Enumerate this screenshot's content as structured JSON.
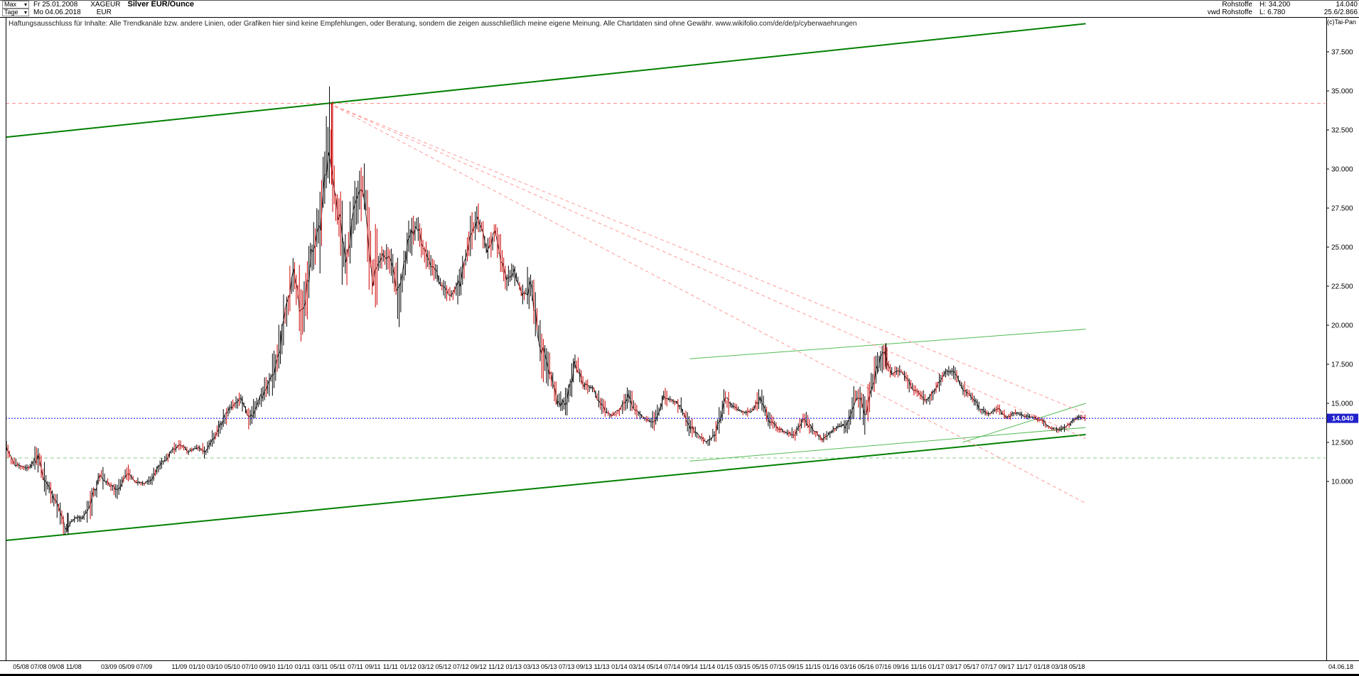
{
  "header": {
    "range_selector": "Max",
    "range_start": "Fr 25.01.2008",
    "symbol": "XAGEUR",
    "title": "Silver EUR/Ounce",
    "period_selector": "Tage",
    "last_session": "Mo 04.06.2018",
    "currency": "EUR",
    "feed_line1": "Rohstoffe",
    "feed_line2": "vwd Rohstoffe",
    "high": "H: 34.200",
    "low": "L: 6.780",
    "last_value": "14.040",
    "extra_value": "25.6/2.866",
    "copyright": "(c)Tai-Pan"
  },
  "disclaimer": "Haftungsausschluss für Inhalte: Alle Trendkanäle bzw. andere Linien, oder Grafiken hier sind keine Empfehlungen, oder Beratung, sondern die zeigen ausschließlich meine eigene Meinung. Alle Chartdaten sind ohne Gewähr.  www.wikifolio.com/de/de/p/cyberwaehrungen",
  "axis": {
    "last_price": "14.040",
    "last_date": "04.06.18"
  },
  "chart_data": {
    "type": "line",
    "title": "Silver EUR/Ounce",
    "unit": "EUR",
    "start_month": "2008-01",
    "end_date": "2018-06-04",
    "ylim": [
      -1.45,
      39.7
    ],
    "y_tick_values": [
      37.5,
      35.0,
      32.5,
      30.0,
      27.5,
      25.0,
      22.5,
      20.0,
      17.5,
      15.0,
      12.5,
      10.0
    ],
    "y_tick_labels": [
      "37.500",
      "35.000",
      "32.500",
      "30.000",
      "27.500",
      "25.000",
      "22.500",
      "20.000",
      "17.500",
      "15.000",
      "12.500",
      "10.000"
    ],
    "x_tick_labels": [
      "05/08",
      "07/08",
      "09/08",
      "11/08",
      "03/09",
      "05/09",
      "07/09",
      "11/09",
      "01/10",
      "03/10",
      "05/10",
      "07/10",
      "09/10",
      "11/10",
      "01/11",
      "03/11",
      "05/11",
      "07/11",
      "09/11",
      "11/11",
      "01/12",
      "03/12",
      "05/12",
      "07/12",
      "09/12",
      "11/12",
      "01/13",
      "03/13",
      "05/13",
      "07/13",
      "09/13",
      "11/13",
      "01/14",
      "03/14",
      "05/14",
      "07/14",
      "09/14",
      "11/14",
      "01/15",
      "03/15",
      "05/15",
      "07/15",
      "09/15",
      "11/15",
      "01/16",
      "03/16",
      "05/16",
      "07/16",
      "09/16",
      "11/16",
      "01/17",
      "03/17",
      "05/17",
      "07/17",
      "09/17",
      "11/17",
      "01/18",
      "03/18",
      "05/18"
    ],
    "monthly_close": [
      11.2,
      12.2,
      12.6,
      11.3,
      10.9,
      10.9,
      11.6,
      9.6,
      8.7,
      7.0,
      7.6,
      7.7,
      8.7,
      10.4,
      9.8,
      9.4,
      10.6,
      10.0,
      9.8,
      10.3,
      11.2,
      11.8,
      12.4,
      11.9,
      12.2,
      11.9,
      12.9,
      13.9,
      14.9,
      15.2,
      14.0,
      15.1,
      16.1,
      17.4,
      20.5,
      23.1,
      20.6,
      24.4,
      26.6,
      32.3,
      27.0,
      24.0,
      27.8,
      28.9,
      22.6,
      24.5,
      24.2,
      21.6,
      25.5,
      26.5,
      24.4,
      23.6,
      22.3,
      21.9,
      22.9,
      25.3,
      26.9,
      24.9,
      26.0,
      22.9,
      23.5,
      21.9,
      22.4,
      18.6,
      17.3,
      15.0,
      15.1,
      17.7,
      16.1,
      16.0,
      14.8,
      14.2,
      14.5,
      15.5,
      14.4,
      14.0,
      13.8,
      15.4,
      15.2,
      14.8,
      13.5,
      12.9,
      12.5,
      13.1,
      15.2,
      14.8,
      14.4,
      14.5,
      15.3,
      14.0,
      13.4,
      13.1,
      13.0,
      14.1,
      13.3,
      12.7,
      13.1,
      13.6,
      13.6,
      15.7,
      14.4,
      16.8,
      18.2,
      16.9,
      17.1,
      16.2,
      15.6,
      15.1,
      16.0,
      17.0,
      17.1,
      15.9,
      15.5,
      14.6,
      14.3,
      14.7,
      14.1,
      14.4,
      14.2,
      14.1,
      13.9,
      13.4,
      13.3,
      13.6,
      14.1,
      14.04
    ],
    "high": {
      "month": "2011-04",
      "value": 34.2
    },
    "low": {
      "month": "2008-10",
      "value": 6.78
    },
    "last": 14.04,
    "trend_lines": [
      {
        "name": "channel-upper",
        "from": [
          "2008-01",
          31.9
        ],
        "to": [
          "2018-06",
          39.3
        ],
        "color": "#007f00",
        "width": 2,
        "style": "solid"
      },
      {
        "name": "channel-lower",
        "from": [
          "2008-01",
          6.1
        ],
        "to": [
          "2018-06",
          13.0
        ],
        "color": "#007f00",
        "width": 2,
        "style": "solid"
      },
      {
        "name": "support-mid",
        "from": [
          "2014-09",
          17.85
        ],
        "to": [
          "2018-06",
          19.75
        ],
        "color": "#55bb55",
        "width": 1,
        "style": "solid"
      },
      {
        "name": "support-low-a",
        "from": [
          "2014-09",
          11.3
        ],
        "to": [
          "2018-06",
          13.45
        ],
        "color": "#55bb55",
        "width": 1,
        "style": "solid"
      },
      {
        "name": "support-low-b",
        "from": [
          "2017-04",
          12.5
        ],
        "to": [
          "2018-06",
          15.0
        ],
        "color": "#55bb55",
        "width": 1,
        "style": "solid"
      },
      {
        "name": "fan-1",
        "from": [
          "2011-04",
          34.2
        ],
        "to": [
          "2018-06",
          14.35
        ],
        "color": "#ff9999",
        "width": 1,
        "style": "dashed"
      },
      {
        "name": "fan-2",
        "from": [
          "2011-04",
          34.2
        ],
        "to": [
          "2018-06",
          12.75
        ],
        "color": "#ff9999",
        "width": 1,
        "style": "dashed"
      },
      {
        "name": "fan-3",
        "from": [
          "2011-04",
          34.2
        ],
        "to": [
          "2018-06",
          8.6
        ],
        "color": "#ff9999",
        "width": 1,
        "style": "dashed"
      }
    ],
    "h_lines": [
      {
        "name": "high-line",
        "value": 34.2,
        "color": "#ff8888",
        "style": "dashed"
      },
      {
        "name": "low-green-line",
        "value": 11.5,
        "color": "#88cc88",
        "style": "dashed"
      },
      {
        "name": "last-price-line",
        "value": 14.04,
        "color": "#0000ee",
        "style": "dotted"
      }
    ],
    "spikes": [
      {
        "month": "2011-04",
        "from": 29.0,
        "to": 34.2,
        "color": "#cc0000"
      },
      {
        "month": "2008-10",
        "from": 8.0,
        "to": 6.78,
        "color": "#000000"
      },
      {
        "month": "2016-07",
        "from": 17.2,
        "to": 18.85,
        "color": "#000000"
      }
    ],
    "candle_colors": {
      "up": "#000000",
      "down": "#cc0000"
    },
    "badge_color": "#2222cc"
  }
}
